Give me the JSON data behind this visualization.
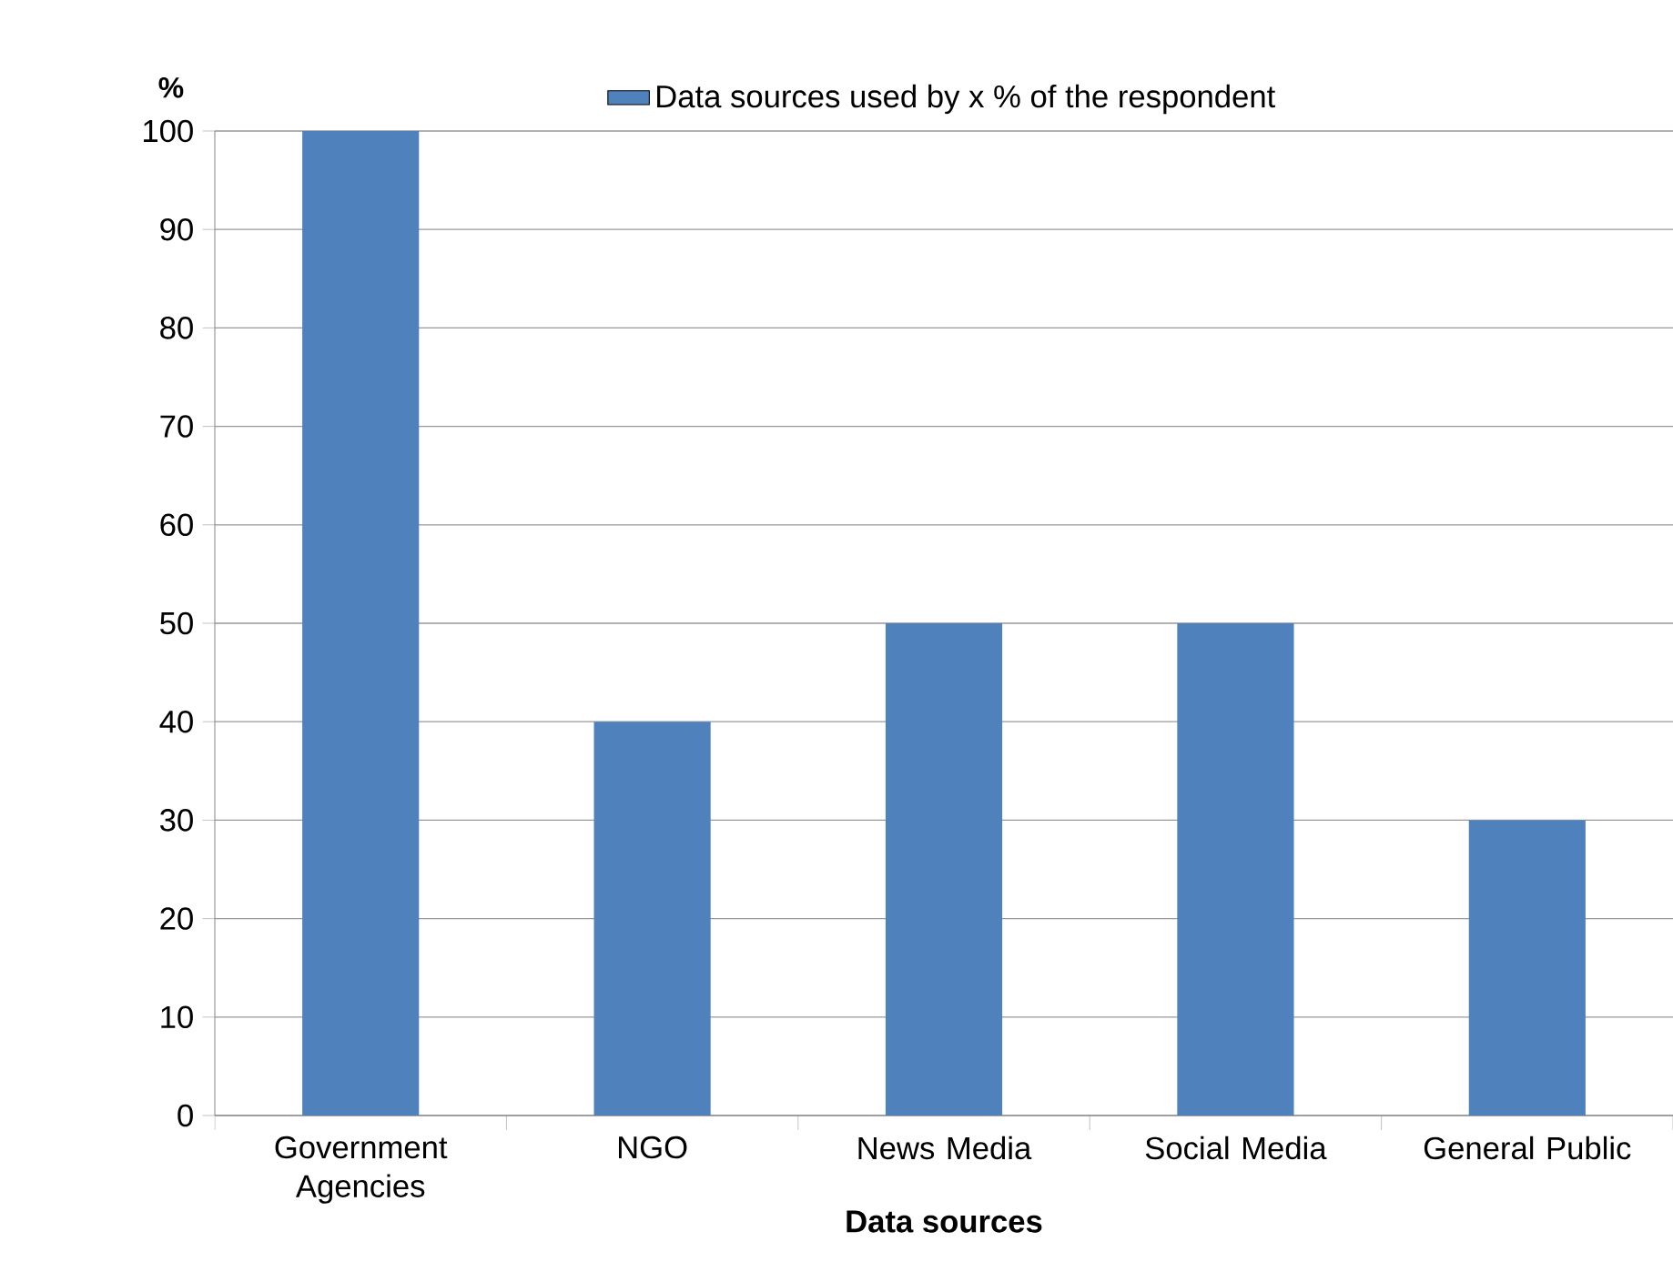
{
  "chart_data": {
    "type": "bar",
    "categories": [
      "Government Agencies",
      "NGO",
      "News Media",
      "Social Media",
      "General Public"
    ],
    "series": [
      {
        "name": "Data sources used by x % of the respondent",
        "color": "#4f81bd",
        "values": [
          100,
          40,
          50,
          50,
          30
        ]
      }
    ],
    "xlabel": "Data sources",
    "ylabel": "%",
    "ylim": [
      0,
      100
    ],
    "yticks": [
      0,
      10,
      20,
      30,
      40,
      50,
      60,
      70,
      80,
      90,
      100
    ],
    "grid": "y",
    "legend": "top"
  }
}
